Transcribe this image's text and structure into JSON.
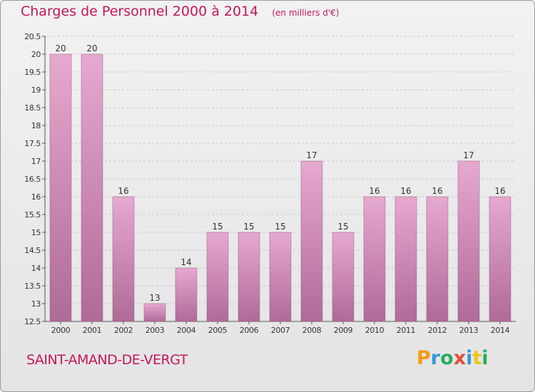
{
  "title": "Charges de Personnel 2000 à 2014",
  "subtitle": "(en milliers d'€)",
  "commune": "SAINT-AMAND-DE-VERGT",
  "logo": {
    "text": "Proxiti",
    "letters": [
      {
        "ch": "P",
        "color": "#f39c12"
      },
      {
        "ch": "r",
        "color": "#3498db"
      },
      {
        "ch": "o",
        "color": "#27ae60"
      },
      {
        "ch": "x",
        "color": "#e74c3c"
      },
      {
        "ch": "i",
        "color": "#3498db"
      },
      {
        "ch": "t",
        "color": "#f1c40f"
      },
      {
        "ch": "i",
        "color": "#27ae60"
      }
    ]
  },
  "colors": {
    "accent": "#c2185b",
    "bar_top": "#e6a9cf",
    "bar_bottom": "#b06a98",
    "grid": "#c8c8c8"
  },
  "chart_data": {
    "type": "bar",
    "categories": [
      "2000",
      "2001",
      "2002",
      "2003",
      "2004",
      "2005",
      "2006",
      "2007",
      "2008",
      "2009",
      "2010",
      "2011",
      "2012",
      "2013",
      "2014"
    ],
    "values": [
      20,
      20,
      16,
      13,
      14,
      15,
      15,
      15,
      17,
      15,
      16,
      16,
      16,
      17,
      16
    ],
    "data_labels": [
      "20",
      "20",
      "16",
      "13",
      "14",
      "15",
      "15",
      "15",
      "17",
      "15",
      "16",
      "16",
      "16",
      "17",
      "16"
    ],
    "ylim": [
      12.5,
      20.5
    ],
    "yticks": [
      "12.5",
      "13",
      "13.5",
      "14",
      "14.5",
      "15",
      "15.5",
      "16",
      "16.5",
      "17",
      "17.5",
      "18",
      "18.5",
      "19",
      "19.5",
      "20",
      "20.5"
    ],
    "grid": true,
    "xlabel": "",
    "ylabel": ""
  }
}
